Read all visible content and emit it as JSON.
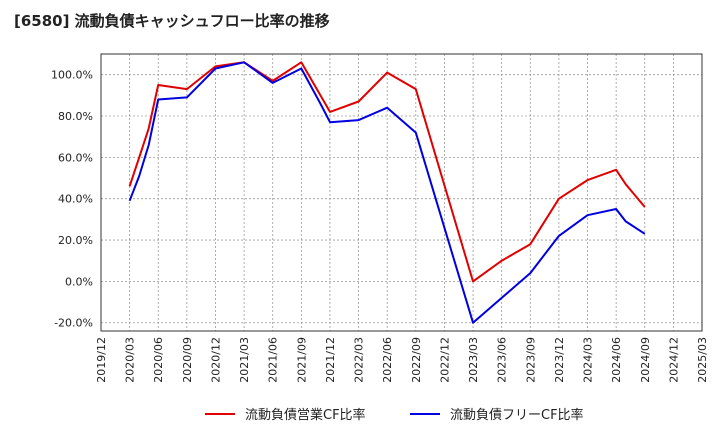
{
  "chart_data": {
    "type": "line",
    "title": "[6580]  流動負債キャッシュフロー比率の推移",
    "xlabel": "",
    "ylabel": "",
    "x_ticks": [
      "2019/12",
      "2020/03",
      "2020/06",
      "2020/09",
      "2020/12",
      "2021/03",
      "2021/06",
      "2021/09",
      "2021/12",
      "2022/03",
      "2022/06",
      "2022/09",
      "2022/12",
      "2023/03",
      "2023/06",
      "2023/09",
      "2023/12",
      "2024/03",
      "2024/06",
      "2024/09",
      "2024/12",
      "2025/03"
    ],
    "y_ticks": [
      "100.0%",
      "80.0%",
      "60.0%",
      "40.0%",
      "20.0%",
      "0.0%",
      "-20.0%"
    ],
    "ylim": [
      -24,
      110
    ],
    "grid": true,
    "legend_position": "bottom",
    "series": [
      {
        "name": "流動負債営業CF比率",
        "color": "#e00000",
        "points": [
          [
            "2020/03",
            46
          ],
          [
            "2020/04",
            60
          ],
          [
            "2020/05",
            74
          ],
          [
            "2020/06",
            95
          ],
          [
            "2020/09",
            93
          ],
          [
            "2020/12",
            104
          ],
          [
            "2021/03",
            106
          ],
          [
            "2021/06",
            97
          ],
          [
            "2021/09",
            106
          ],
          [
            "2021/12",
            82
          ],
          [
            "2022/03",
            87
          ],
          [
            "2022/06",
            101
          ],
          [
            "2022/09",
            93
          ],
          [
            "2023/03",
            0
          ],
          [
            "2023/06",
            10
          ],
          [
            "2023/09",
            18
          ],
          [
            "2023/12",
            40
          ],
          [
            "2024/03",
            49
          ],
          [
            "2024/06",
            54
          ],
          [
            "2024/07",
            47
          ],
          [
            "2024/09",
            36
          ]
        ]
      },
      {
        "name": "流動負債フリーCF比率",
        "color": "#0000e0",
        "points": [
          [
            "2020/03",
            39
          ],
          [
            "2020/04",
            51
          ],
          [
            "2020/05",
            66
          ],
          [
            "2020/06",
            88
          ],
          [
            "2020/09",
            89
          ],
          [
            "2020/12",
            103
          ],
          [
            "2021/03",
            106
          ],
          [
            "2021/06",
            96
          ],
          [
            "2021/09",
            103
          ],
          [
            "2021/11",
            86
          ],
          [
            "2021/12",
            77
          ],
          [
            "2022/03",
            78
          ],
          [
            "2022/06",
            84
          ],
          [
            "2022/09",
            72
          ],
          [
            "2023/03",
            -20
          ],
          [
            "2023/06",
            -8
          ],
          [
            "2023/09",
            4
          ],
          [
            "2023/12",
            22
          ],
          [
            "2024/03",
            32
          ],
          [
            "2024/06",
            35
          ],
          [
            "2024/07",
            29
          ],
          [
            "2024/09",
            23
          ]
        ]
      }
    ]
  }
}
